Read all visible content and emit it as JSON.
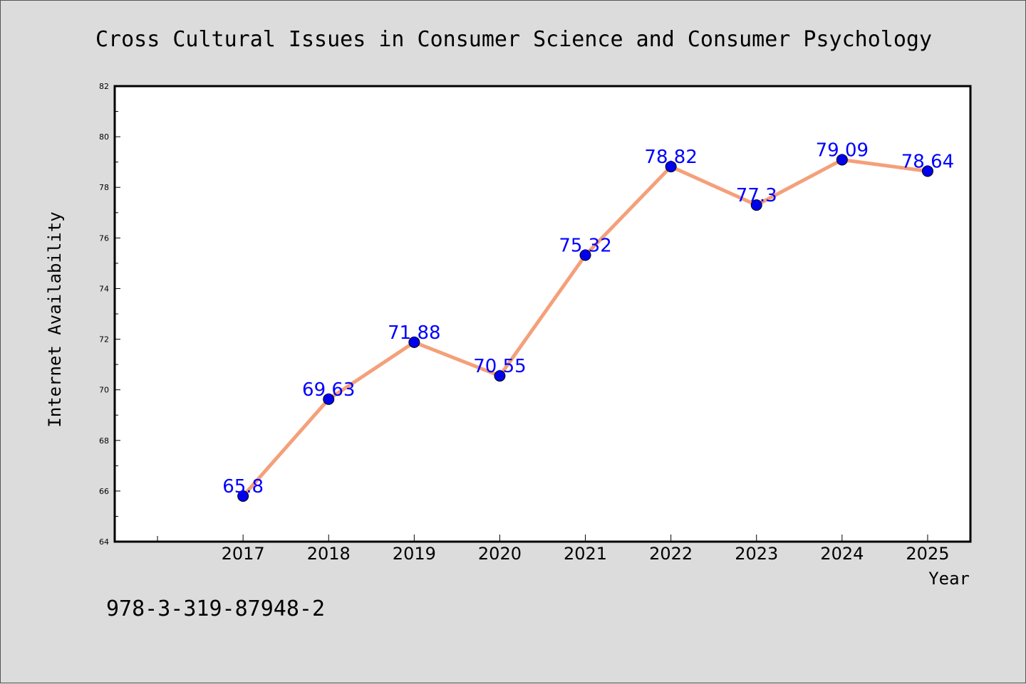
{
  "chart_data": {
    "type": "line",
    "title": "Cross Cultural Issues in Consumer Science and Consumer Psychology",
    "xlabel": "Year",
    "ylabel": "Internet Availability",
    "categories": [
      "2017",
      "2018",
      "2019",
      "2020",
      "2021",
      "2022",
      "2023",
      "2024",
      "2025"
    ],
    "x": [
      2017,
      2018,
      2019,
      2020,
      2021,
      2022,
      2023,
      2024,
      2025
    ],
    "values": [
      65.8,
      69.63,
      71.88,
      70.55,
      75.32,
      78.82,
      77.3,
      79.09,
      78.64
    ],
    "data_labels": [
      "65.8",
      "69.63",
      "71.88",
      "70.55",
      "75.32",
      "78.82",
      "77.3",
      "79.09",
      "78.64"
    ],
    "xlim": [
      2015.5,
      2025.5
    ],
    "ylim": [
      64,
      82
    ],
    "yticks": [
      64,
      66,
      68,
      70,
      72,
      74,
      76,
      78,
      80,
      82
    ],
    "grid": false,
    "legend": "none",
    "line_color": "#f4a07a",
    "marker_color": "#0000ee",
    "label_color": "#0000ff"
  },
  "footnote": "978-3-319-87948-2"
}
